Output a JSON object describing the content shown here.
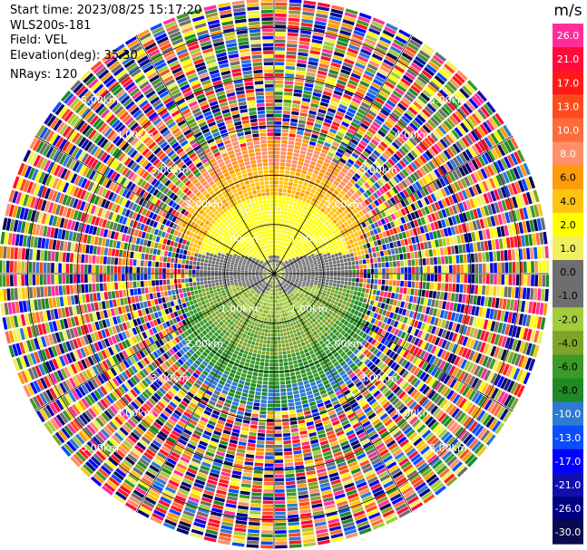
{
  "header": {
    "start_time": "Start time: 2023/08/25 15:17:20",
    "instrument": "WLS200s-181",
    "field": "Field: VEL",
    "elevation": "Elevation(deg): 35.30",
    "nrays": "NRays: 120"
  },
  "chart_data": {
    "type": "heatmap",
    "projection": "polar PPI",
    "field": "VEL",
    "units": "m/s",
    "n_rays": 120,
    "range_rings_km": [
      1.0,
      2.0,
      3.0,
      4.0,
      5.0
    ],
    "ring_labels": [
      "1.00km",
      "2.00km",
      "3.00km",
      "4.00km",
      "5.00km"
    ],
    "max_range_km": 5.6,
    "colorbar": {
      "label": "m/s",
      "ticks": [
        "26.0",
        "21.0",
        "17.0",
        "13.0",
        "10.0",
        "8.0",
        "6.0",
        "4.0",
        "2.0",
        "1.0",
        "0.0",
        "-1.0",
        "-2.0",
        "-4.0",
        "-6.0",
        "-8.0",
        "-10.0",
        "-13.0",
        "-17.0",
        "-21.0",
        "-26.0",
        "-30.0"
      ],
      "colors": [
        "#ff2d9a",
        "#ff0a3c",
        "#ff1a1a",
        "#ff4a1e",
        "#ff6b3a",
        "#ff8f6a",
        "#ff9a08",
        "#ffc412",
        "#ffff00",
        "#f0f060",
        "#6e6e6e",
        "#6e6e6e",
        "#a2cc3a",
        "#7ea528",
        "#3c9a28",
        "#1f8a24",
        "#2f7ad2",
        "#0a4dff",
        "#0000ff",
        "#1010b0",
        "#000080",
        "#0a0a4e"
      ]
    },
    "structure": {
      "coherent_range_km": 2.8,
      "positive_half": "upper",
      "negative_half": "lower",
      "near_zero_band": "horizontal, through center",
      "outer_region": "noise"
    }
  }
}
